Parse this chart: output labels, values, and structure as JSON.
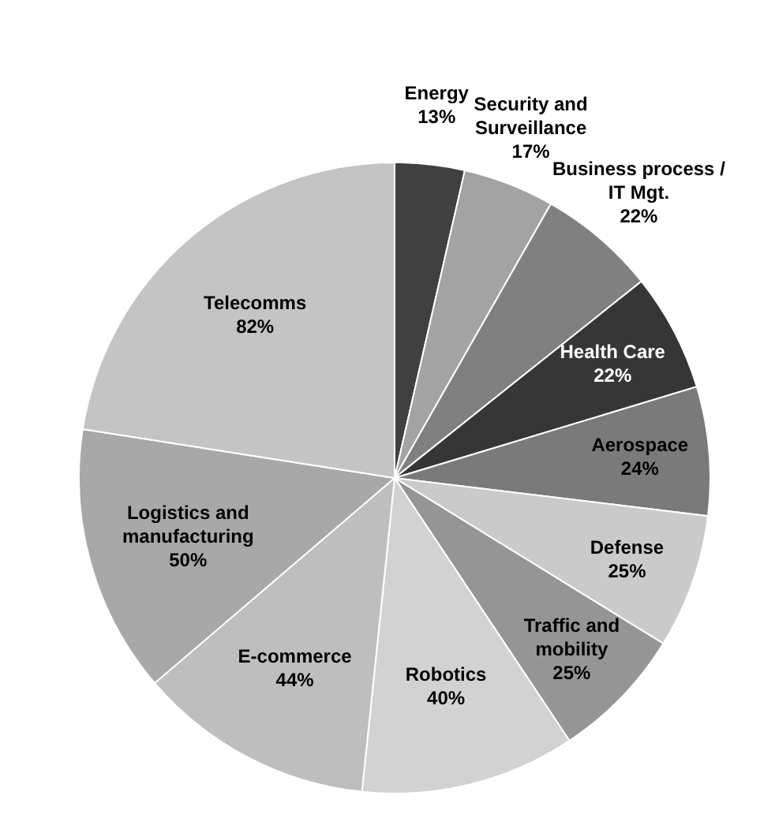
{
  "chart_data": {
    "type": "pie",
    "categories": [
      "Energy",
      "Security and Surveillance",
      "Business process / IT Mgt.",
      "Health Care",
      "Aerospace",
      "Defense",
      "Traffic and mobility",
      "Robotics",
      "E-commerce",
      "Logistics and manufacturing",
      "Telecomms"
    ],
    "values": [
      13,
      17,
      22,
      22,
      24,
      25,
      25,
      40,
      44,
      50,
      82
    ],
    "value_labels": [
      "13%",
      "17%",
      "22%",
      "22%",
      "24%",
      "25%",
      "25%",
      "40%",
      "44%",
      "50%",
      "82%"
    ],
    "colors": [
      "#404040",
      "#a3a3a3",
      "#808080",
      "#363636",
      "#7a7a7a",
      "#cacaca",
      "#959595",
      "#d2d2d2",
      "#bebebe",
      "#a8a8a8",
      "#c4c4c4"
    ]
  }
}
